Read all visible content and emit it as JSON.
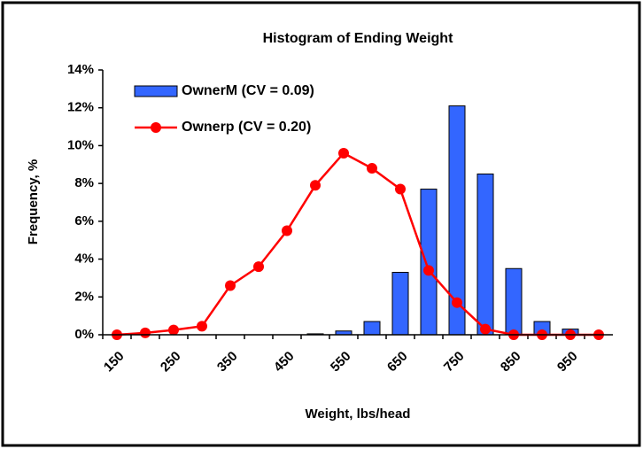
{
  "chart_data": {
    "type": "bar",
    "title": "Histogram of Ending Weight",
    "x_label": "Weight, lbs/head",
    "y_label": "Frequency, %",
    "categories": [
      "150",
      null,
      "250",
      null,
      "350",
      null,
      "450",
      null,
      "550",
      null,
      "650",
      null,
      "750",
      null,
      "850",
      null,
      "950",
      null
    ],
    "series": [
      {
        "name": "OwnerM (CV = 0.09)",
        "type": "bar",
        "color": "#3366ff",
        "values": [
          0,
          0,
          0,
          0,
          0,
          0,
          0,
          0.05,
          0.2,
          0.7,
          3.3,
          7.7,
          12.1,
          8.5,
          3.5,
          0.7,
          0.3,
          0
        ]
      },
      {
        "name": "Ownerp (CV = 0.20)",
        "type": "line",
        "color": "#ff0000",
        "values": [
          0,
          0.1,
          0.25,
          0.45,
          2.6,
          3.6,
          5.5,
          7.9,
          9.6,
          8.8,
          7.7,
          3.4,
          1.7,
          0.3,
          0,
          0,
          0,
          0
        ]
      }
    ],
    "ylim": [
      0,
      14
    ],
    "yticks": [
      {
        "value": 0,
        "label": "0%"
      },
      {
        "value": 2,
        "label": "2%"
      },
      {
        "value": 4,
        "label": "4%"
      },
      {
        "value": 6,
        "label": "6%"
      },
      {
        "value": 8,
        "label": "8%"
      },
      {
        "value": 10,
        "label": "10%"
      },
      {
        "value": 12,
        "label": "12%"
      },
      {
        "value": 14,
        "label": "14%"
      }
    ],
    "grid": false,
    "legend": "top-left"
  }
}
